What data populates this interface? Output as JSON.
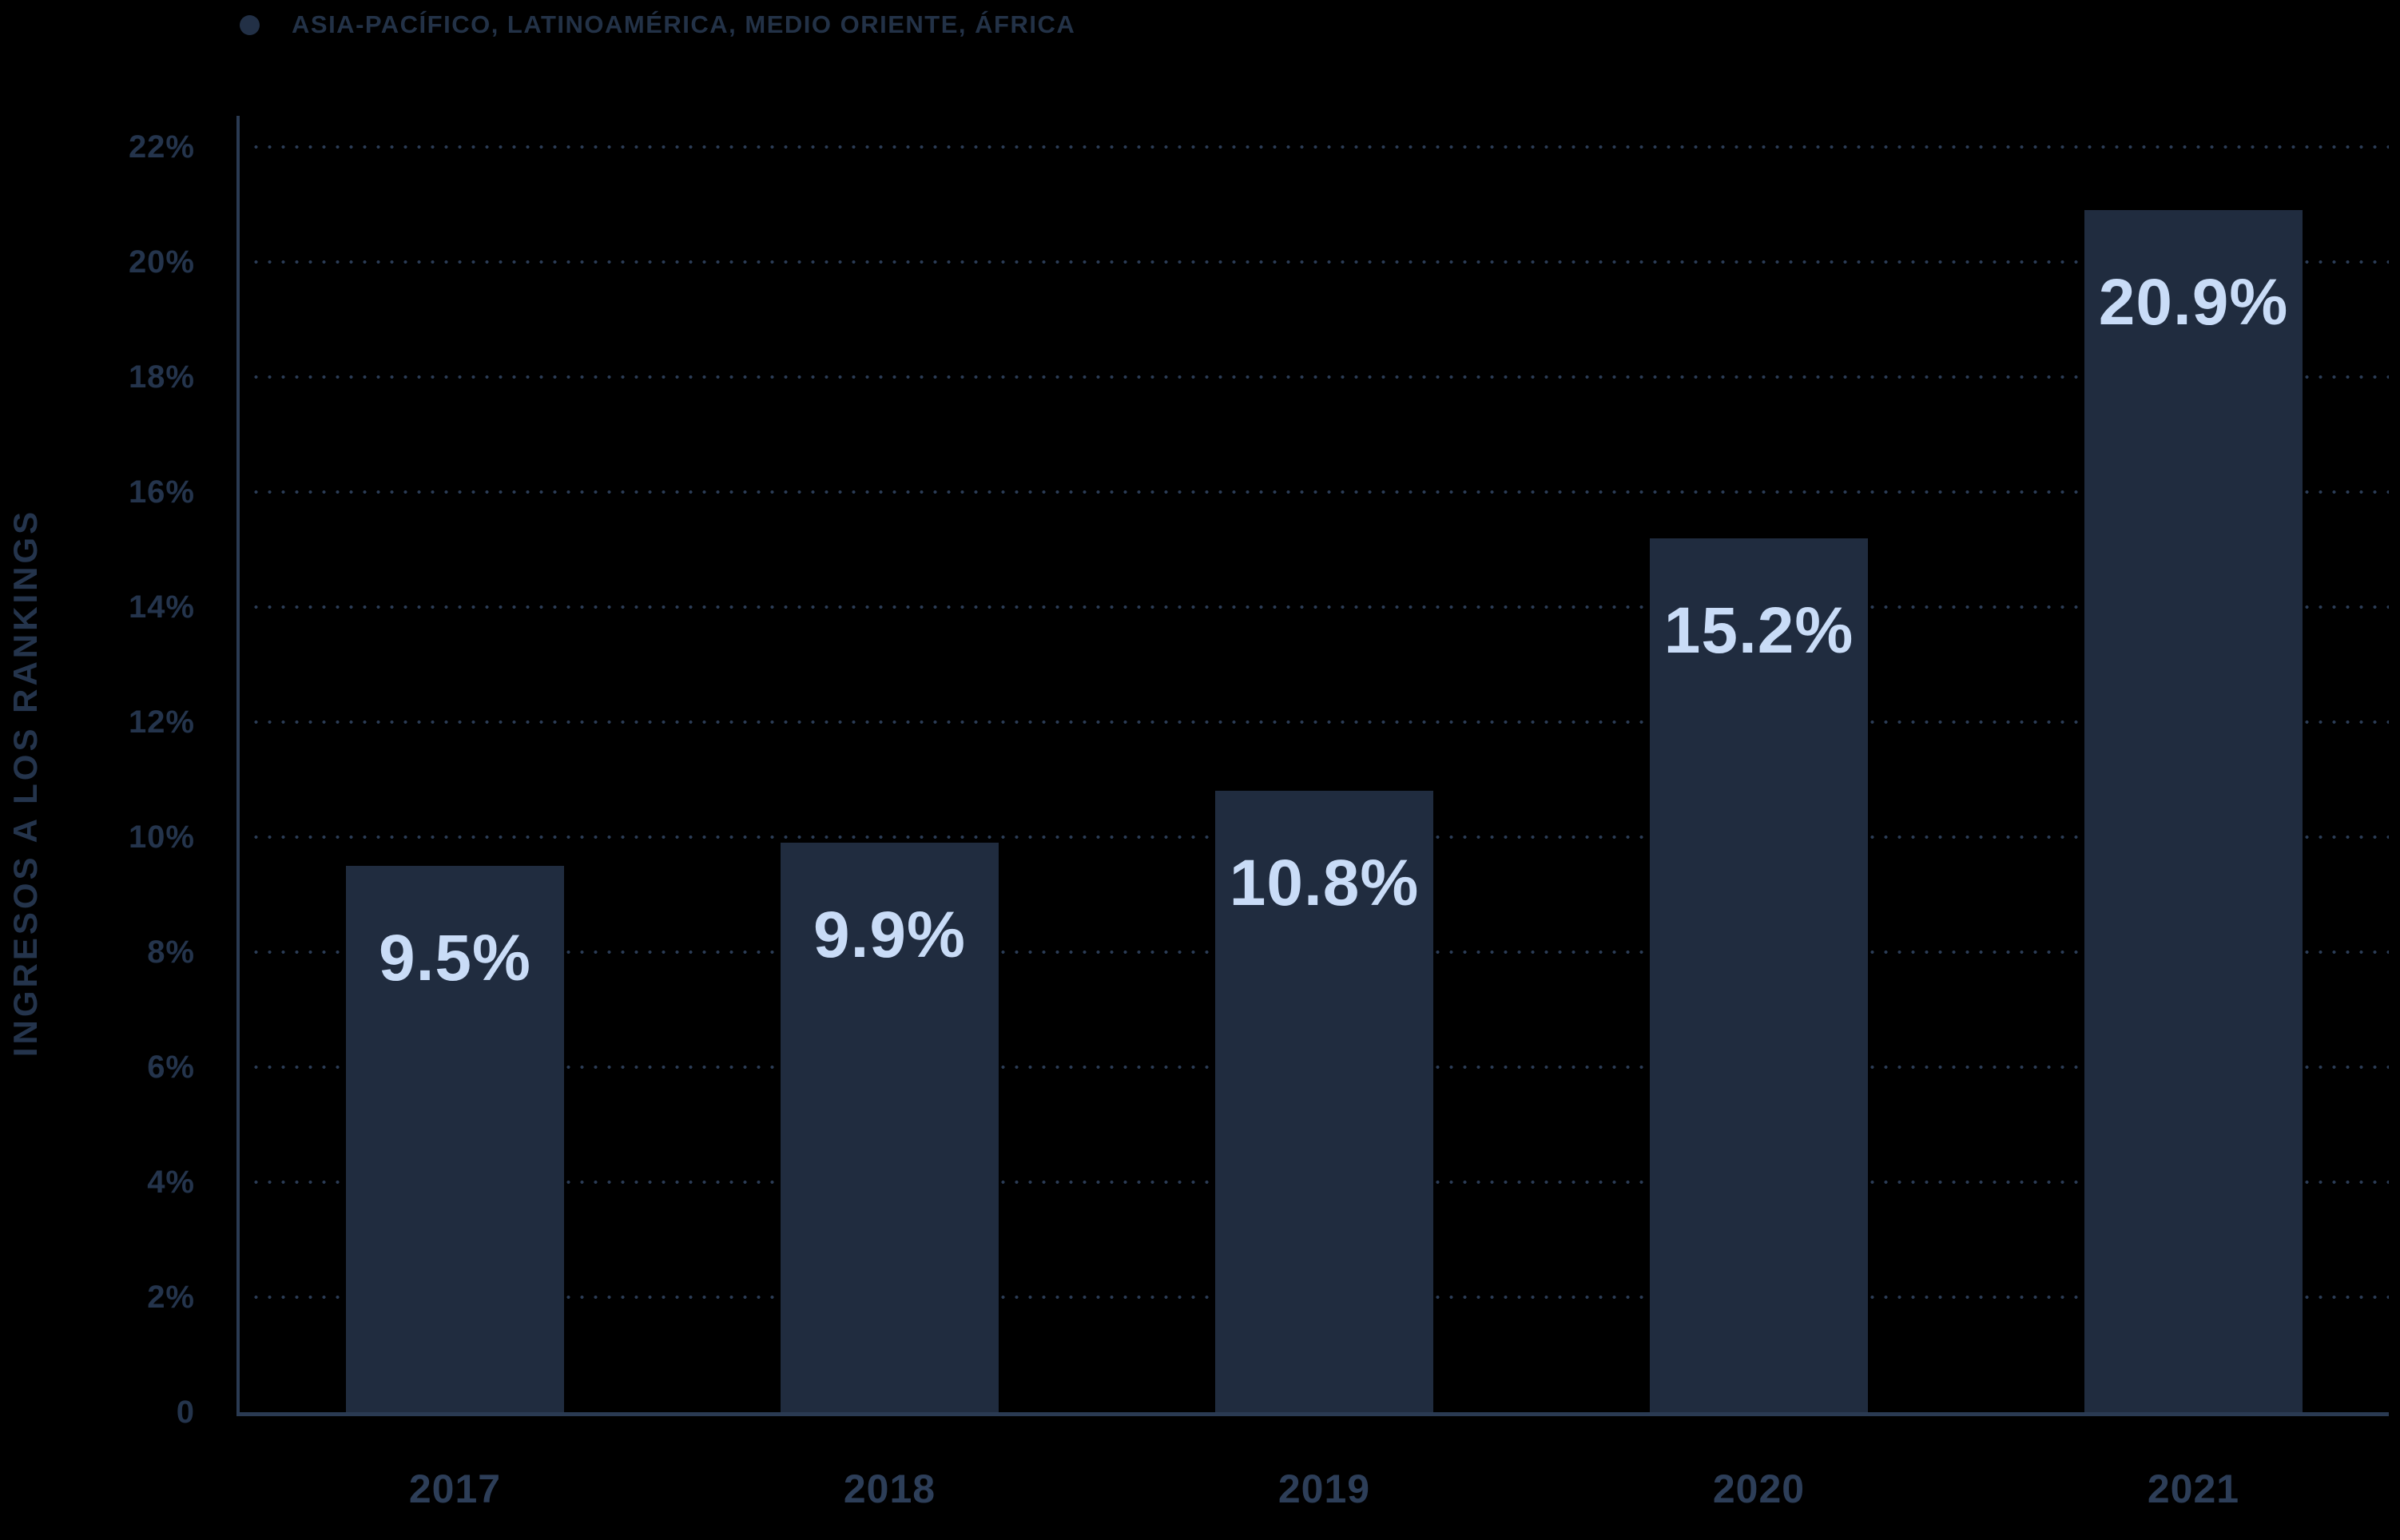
{
  "chart_data": {
    "type": "bar",
    "title": "",
    "categories": [
      "2017",
      "2018",
      "2019",
      "2020",
      "2021"
    ],
    "values": [
      9.5,
      9.9,
      10.8,
      15.2,
      20.9
    ],
    "value_labels": [
      "9.5%",
      "9.9%",
      "10.8%",
      "15.2%",
      "20.9%"
    ],
    "series": [
      {
        "name": "ASIA-PACÍFICO, LATINOAMÉRICA, MEDIO ORIENTE, ÁFRICA",
        "values": [
          9.5,
          9.9,
          10.8,
          15.2,
          20.9
        ]
      }
    ],
    "xlabel": "",
    "ylabel": "INGRESOS A LOS RANKINGS",
    "ylim": [
      0,
      22
    ],
    "ytick_step": 2,
    "ytick_labels": [
      "22%",
      "20%",
      "18%",
      "16%",
      "14%",
      "12%",
      "10%",
      "8%",
      "6%",
      "4%",
      "2%",
      "0"
    ],
    "grid": "horizontal-dotted",
    "legend_position": "top-left",
    "legend_entries": [
      "ASIA-PACÍFICO, LATINOAMÉRICA, MEDIO ORIENTE, ÁFRICA"
    ],
    "colors": {
      "background": "#000000",
      "bar": "#202C3F",
      "bar_value_label": "#C9DCF7",
      "tick_label": "#24344C",
      "category_label": "#2D3E58",
      "legend_text": "#233247",
      "legend_marker": "#223046",
      "gridline": "#2B3C56",
      "axis_line": "#2A3A52",
      "y_axis_title": "#24344C"
    }
  }
}
